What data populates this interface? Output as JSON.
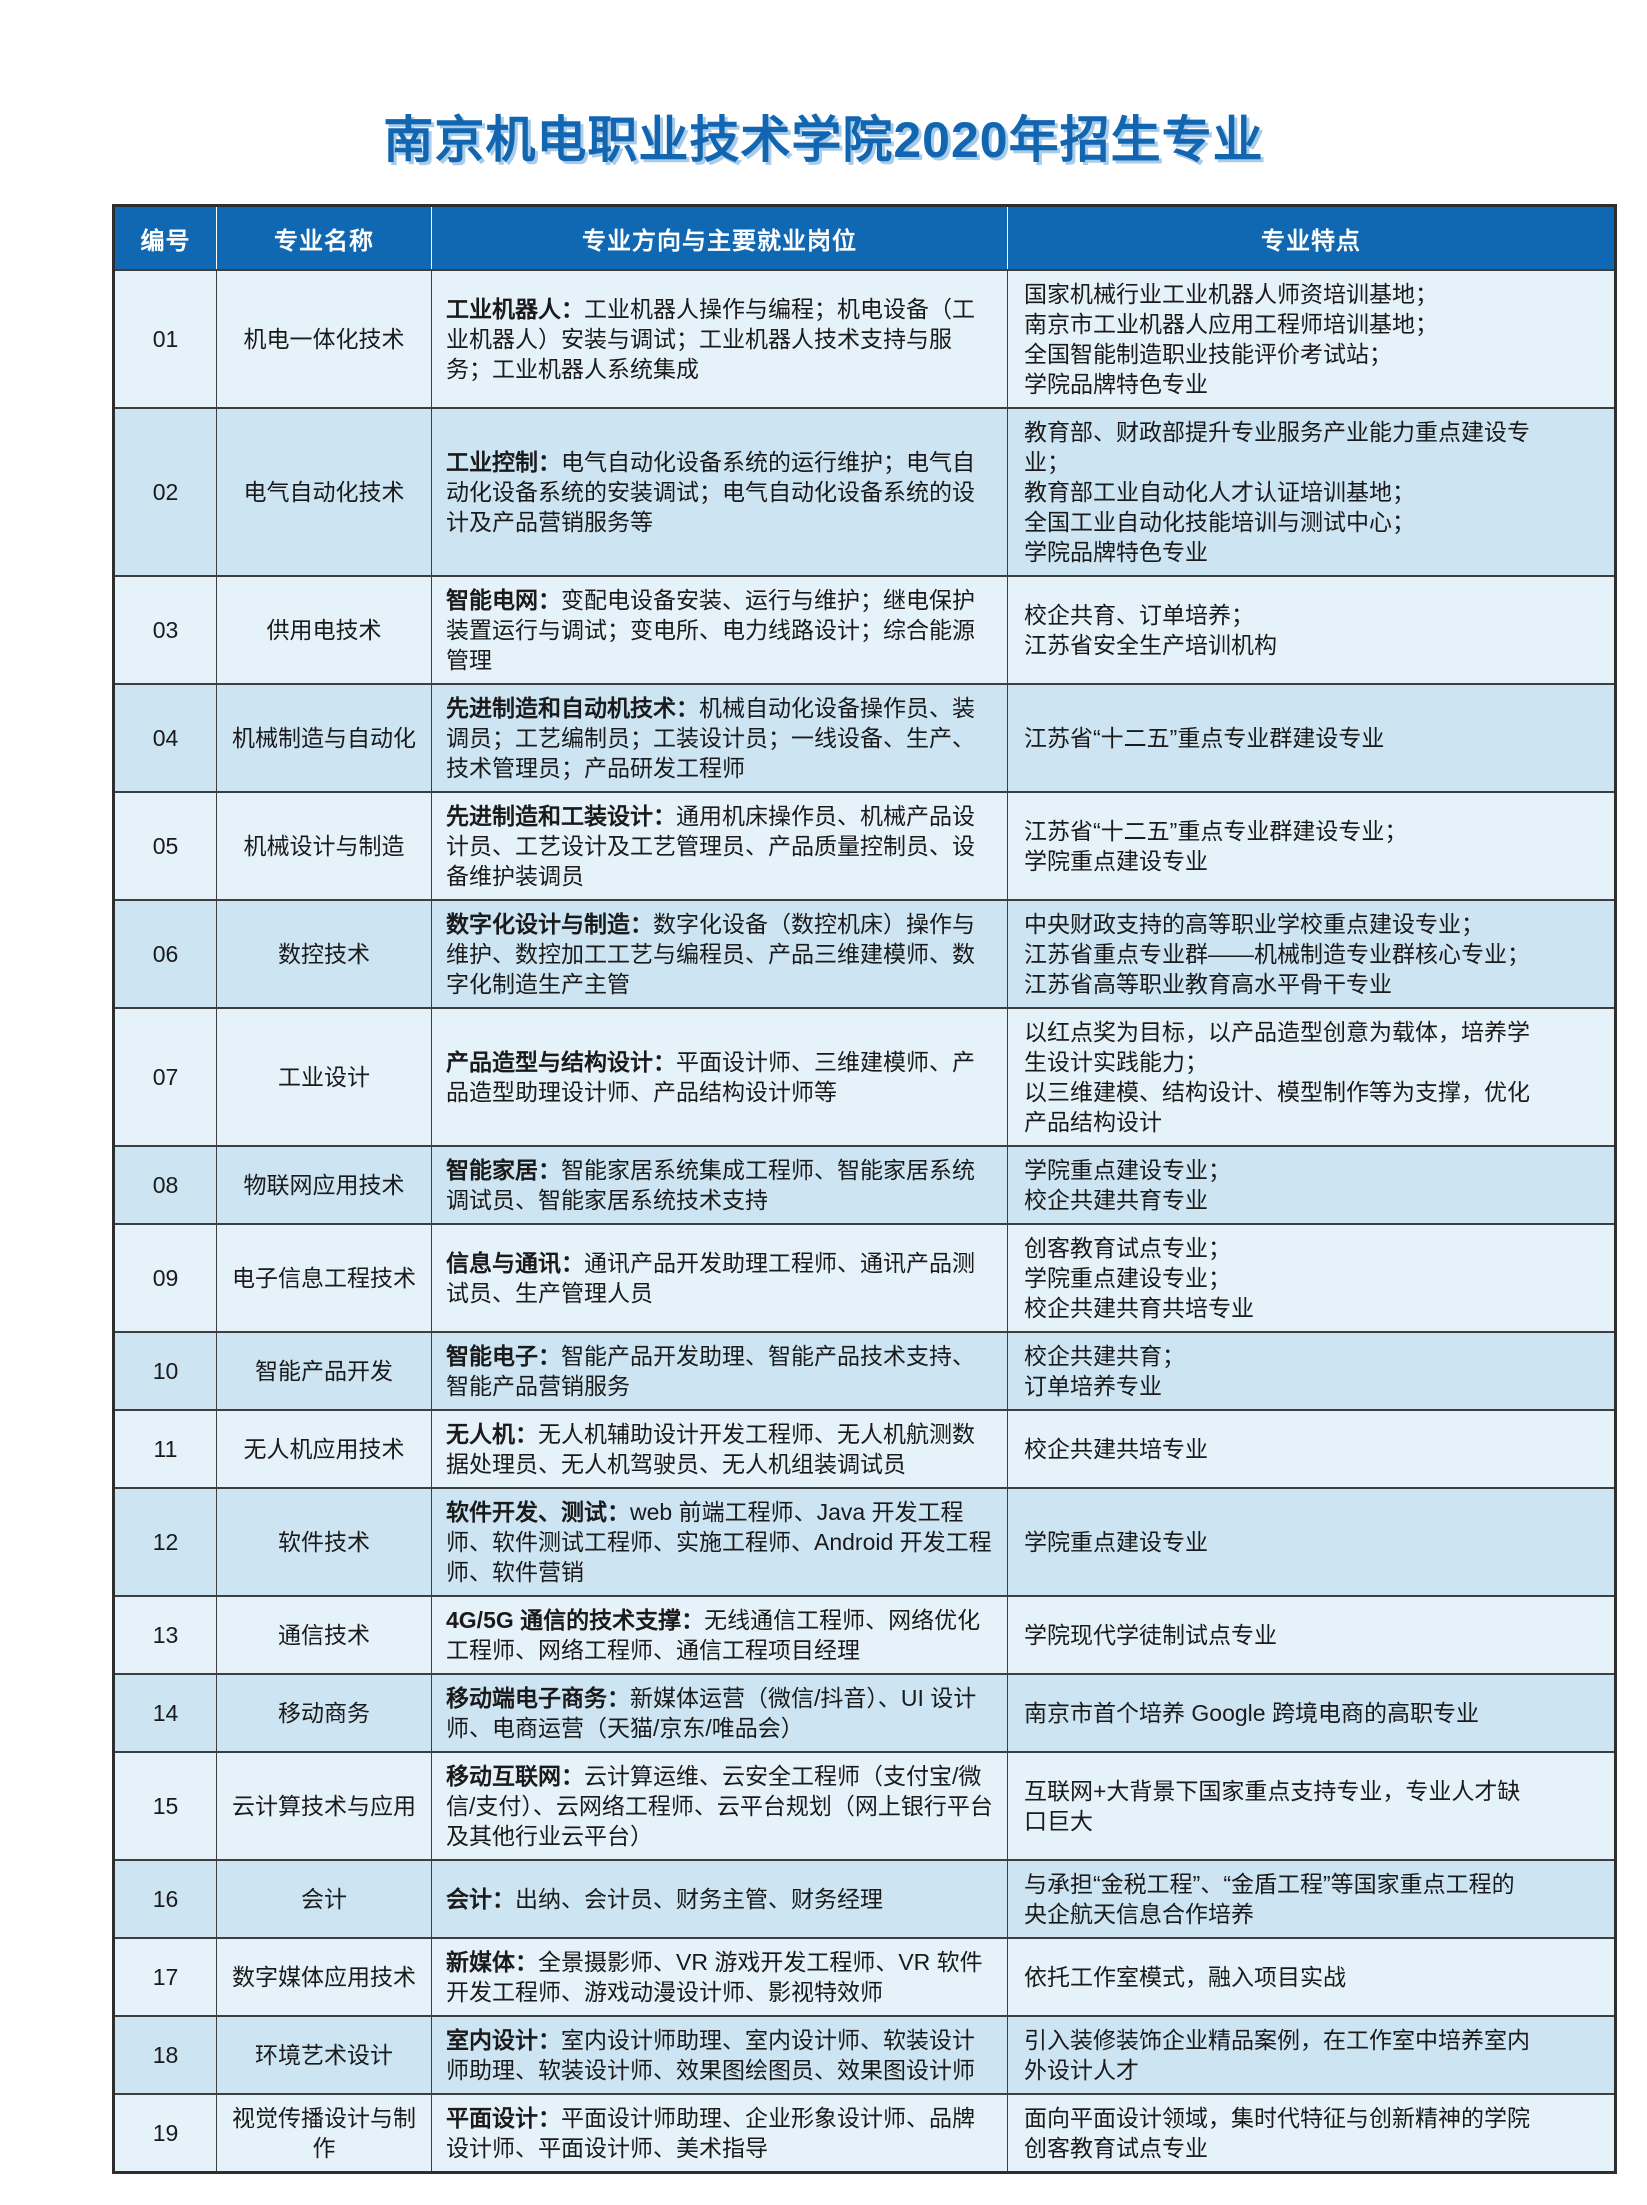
{
  "page_title": "南京机电职业技术学院2020年招生专业",
  "colors": {
    "title_blue": "#1266b1",
    "title_shadow": "#a9cce9",
    "header_bg": "#1168b2",
    "header_text": "#ffffff",
    "row_light": "#e6f2fa",
    "row_dark": "#cde4f3",
    "border_dark": "#3e3e3e",
    "body_text": "#1a1a1a"
  },
  "table": {
    "headers": [
      "编号",
      "专业名称",
      "专业方向与主要就业岗位",
      "专业特点"
    ],
    "rows": [
      {
        "no": "01",
        "major": "机电一体化技术",
        "direction_label": "工业机器人：",
        "direction_text": "工业机器人操作与编程；机电设备（工业机器人）安装与调试；工业机器人技术支持与服务；工业机器人系统集成",
        "features": [
          "国家机械行业工业机器人师资培训基地；",
          "南京市工业机器人应用工程师培训基地；",
          "全国智能制造职业技能评价考试站；",
          "学院品牌特色专业"
        ]
      },
      {
        "no": "02",
        "major": "电气自动化技术",
        "direction_label": "工业控制：",
        "direction_text": "电气自动化设备系统的运行维护；电气自动化设备系统的安装调试；电气自动化设备系统的设计及产品营销服务等",
        "features": [
          "教育部、财政部提升专业服务产业能力重点建设专业；",
          "教育部工业自动化人才认证培训基地；",
          "全国工业自动化技能培训与测试中心；",
          "学院品牌特色专业"
        ]
      },
      {
        "no": "03",
        "major": "供用电技术",
        "direction_label": "智能电网：",
        "direction_text": "变配电设备安装、运行与维护；继电保护装置运行与调试；变电所、电力线路设计；综合能源管理",
        "features": [
          "校企共育、订单培养；",
          "江苏省安全生产培训机构"
        ]
      },
      {
        "no": "04",
        "major": "机械制造与自动化",
        "direction_label": "先进制造和自动机技术：",
        "direction_text": "机械自动化设备操作员、装调员；工艺编制员；工装设计员；一线设备、生产、技术管理员；产品研发工程师",
        "features": [
          "江苏省“十二五”重点专业群建设专业"
        ]
      },
      {
        "no": "05",
        "major": "机械设计与制造",
        "direction_label": "先进制造和工装设计：",
        "direction_text": "通用机床操作员、机械产品设计员、工艺设计及工艺管理员、产品质量控制员、设备维护装调员",
        "features": [
          "江苏省“十二五”重点专业群建设专业；",
          "学院重点建设专业"
        ]
      },
      {
        "no": "06",
        "major": "数控技术",
        "direction_label": "数字化设计与制造：",
        "direction_text": "数字化设备（数控机床）操作与维护、数控加工工艺与编程员、产品三维建模师、数字化制造生产主管",
        "features": [
          "中央财政支持的高等职业学校重点建设专业；",
          "江苏省重点专业群——机械制造专业群核心专业；",
          "江苏省高等职业教育高水平骨干专业"
        ]
      },
      {
        "no": "07",
        "major": "工业设计",
        "direction_label": "产品造型与结构设计：",
        "direction_text": "平面设计师、三维建模师、产品造型助理设计师、产品结构设计师等",
        "features": [
          "以红点奖为目标，以产品造型创意为载体，培养学生设计实践能力；",
          "以三维建模、结构设计、模型制作等为支撑，优化产品结构设计"
        ]
      },
      {
        "no": "08",
        "major": "物联网应用技术",
        "direction_label": "智能家居：",
        "direction_text": "智能家居系统集成工程师、智能家居系统调试员、智能家居系统技术支持",
        "features": [
          "学院重点建设专业；",
          "校企共建共育专业"
        ]
      },
      {
        "no": "09",
        "major": "电子信息工程技术",
        "direction_label": "信息与通讯：",
        "direction_text": "通讯产品开发助理工程师、通讯产品测试员、生产管理人员",
        "features": [
          "创客教育试点专业；",
          "学院重点建设专业；",
          "校企共建共育共培专业"
        ]
      },
      {
        "no": "10",
        "major": "智能产品开发",
        "direction_label": "智能电子：",
        "direction_text": "智能产品开发助理、智能产品技术支持、智能产品营销服务",
        "features": [
          "校企共建共育；",
          "订单培养专业"
        ]
      },
      {
        "no": "11",
        "major": "无人机应用技术",
        "direction_label": "无人机：",
        "direction_text": "无人机辅助设计开发工程师、无人机航测数据处理员、无人机驾驶员、无人机组装调试员",
        "features": [
          "校企共建共培专业"
        ]
      },
      {
        "no": "12",
        "major": "软件技术",
        "direction_label": "软件开发、测试：",
        "direction_text": "web 前端工程师、Java 开发工程师、软件测试工程师、实施工程师、Android 开发工程师、软件营销",
        "features": [
          "学院重点建设专业"
        ]
      },
      {
        "no": "13",
        "major": "通信技术",
        "direction_label": "4G/5G 通信的技术支撑：",
        "direction_text": "无线通信工程师、网络优化工程师、网络工程师、通信工程项目经理",
        "features": [
          "学院现代学徒制试点专业"
        ]
      },
      {
        "no": "14",
        "major": "移动商务",
        "direction_label": "移动端电子商务：",
        "direction_text": "新媒体运营（微信/抖音）、UI 设计师、电商运营（天猫/京东/唯品会）",
        "features": [
          "南京市首个培养 Google 跨境电商的高职专业"
        ]
      },
      {
        "no": "15",
        "major": "云计算技术与应用",
        "direction_label": "移动互联网：",
        "direction_text": "云计算运维、云安全工程师（支付宝/微信/支付）、云网络工程师、云平台规划（网上银行平台及其他行业云平台）",
        "features": [
          "互联网+大背景下国家重点支持专业，专业人才缺口巨大"
        ]
      },
      {
        "no": "16",
        "major": "会计",
        "direction_label": "会计：",
        "direction_text": "出纳、会计员、财务主管、财务经理",
        "features": [
          "与承担“金税工程”、“金盾工程”等国家重点工程的央企航天信息合作培养"
        ]
      },
      {
        "no": "17",
        "major": "数字媒体应用技术",
        "direction_label": "新媒体：",
        "direction_text": "全景摄影师、VR 游戏开发工程师、VR 软件开发工程师、游戏动漫设计师、影视特效师",
        "features": [
          "依托工作室模式，融入项目实战"
        ]
      },
      {
        "no": "18",
        "major": "环境艺术设计",
        "direction_label": "室内设计：",
        "direction_text": "室内设计师助理、室内设计师、软装设计师助理、软装设计师、效果图绘图员、效果图设计师",
        "features": [
          "引入装修装饰企业精品案例，在工作室中培养室内外设计人才"
        ]
      },
      {
        "no": "19",
        "major": "视觉传播设计与制作",
        "direction_label": "平面设计：",
        "direction_text": "平面设计师助理、企业形象设计师、品牌设计师、平面设计师、美术指导",
        "features": [
          "面向平面设计领域，集时代特征与创新精神的学院创客教育试点专业"
        ]
      }
    ]
  }
}
